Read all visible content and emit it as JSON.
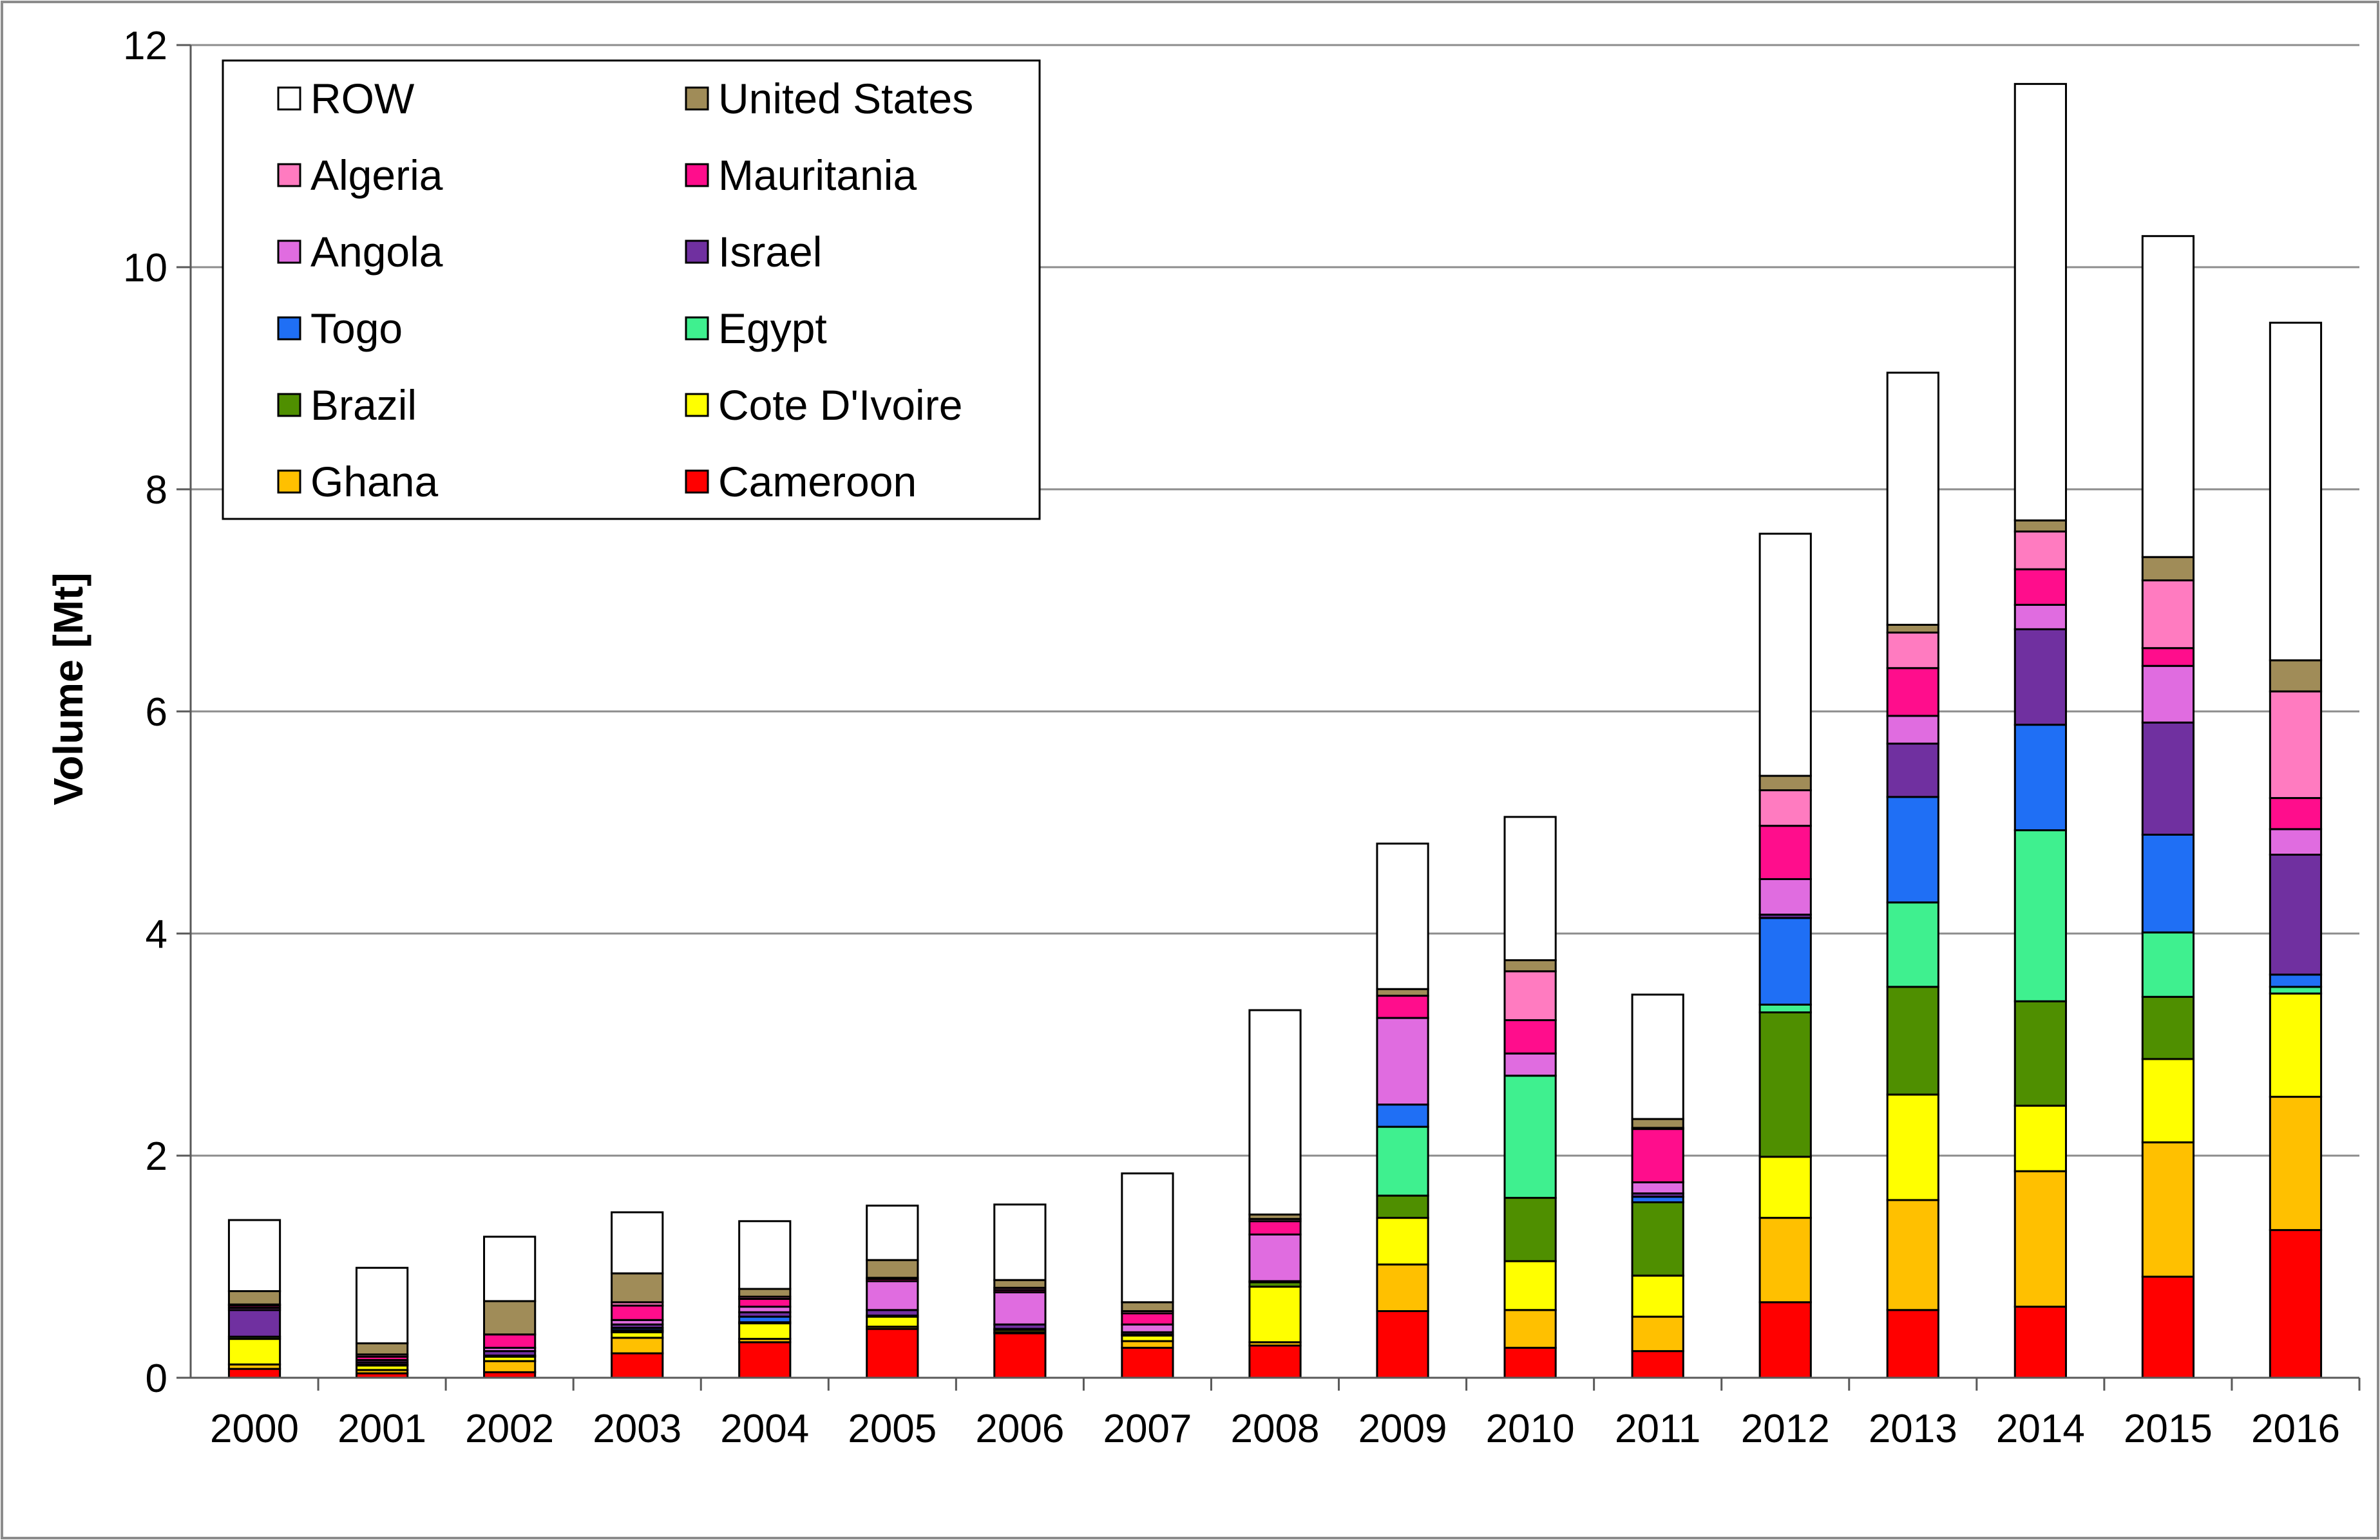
{
  "chart_data": {
    "type": "bar",
    "stacked": true,
    "title": "",
    "xlabel": "",
    "ylabel": "Volume [Mt]",
    "ylim": [
      0,
      12
    ],
    "yticks": [
      "0",
      "2",
      "4",
      "6",
      "8",
      "10",
      "12"
    ],
    "grid": "horizontal",
    "legend_position": "top-left",
    "categories": [
      "2000",
      "2001",
      "2002",
      "2003",
      "2004",
      "2005",
      "2006",
      "2007",
      "2008",
      "2009",
      "2010",
      "2011",
      "2012",
      "2013",
      "2014",
      "2015",
      "2016"
    ],
    "series": [
      {
        "name": "Cameroon",
        "color": "#ff0000",
        "values": [
          0.08,
          0.04,
          0.05,
          0.22,
          0.32,
          0.44,
          0.4,
          0.27,
          0.29,
          0.6,
          0.27,
          0.24,
          0.68,
          0.61,
          0.64,
          0.91,
          1.33
        ]
      },
      {
        "name": "Ghana",
        "color": "#ffc000",
        "values": [
          0.04,
          0.03,
          0.1,
          0.14,
          0.03,
          0.02,
          0.01,
          0.06,
          0.03,
          0.42,
          0.34,
          0.31,
          0.76,
          0.99,
          1.22,
          1.21,
          1.2
        ]
      },
      {
        "name": "Cote D'Ivoire",
        "color": "#ffff00",
        "values": [
          0.23,
          0.04,
          0.04,
          0.05,
          0.14,
          0.09,
          0.02,
          0.05,
          0.5,
          0.42,
          0.44,
          0.37,
          0.55,
          0.95,
          0.59,
          0.75,
          0.93
        ]
      },
      {
        "name": "Brazil",
        "color": "#4f8f00",
        "values": [
          0.02,
          0.01,
          0.01,
          0.01,
          0.01,
          0.01,
          0.01,
          0.01,
          0.04,
          0.2,
          0.57,
          0.66,
          1.3,
          0.97,
          0.94,
          0.56,
          0.0
        ]
      },
      {
        "name": "Egypt",
        "color": "#3ff08f",
        "values": [
          0.0,
          0.0,
          0.0,
          0.01,
          0.0,
          0.0,
          0.0,
          0.0,
          0.0,
          0.62,
          1.1,
          0.0,
          0.07,
          0.76,
          1.54,
          0.58,
          0.06
        ]
      },
      {
        "name": "Togo",
        "color": "#1f6ff5",
        "values": [
          0.0,
          0.0,
          0.0,
          0.02,
          0.05,
          0.0,
          0.0,
          0.0,
          0.0,
          0.2,
          0.0,
          0.05,
          0.78,
          0.95,
          0.95,
          0.88,
          0.11
        ]
      },
      {
        "name": "Israel",
        "color": "#7030a0",
        "values": [
          0.24,
          0.02,
          0.04,
          0.03,
          0.04,
          0.05,
          0.04,
          0.02,
          0.01,
          0.0,
          0.0,
          0.03,
          0.03,
          0.48,
          0.86,
          1.01,
          1.08
        ]
      },
      {
        "name": "Angola",
        "color": "#e06ce0",
        "values": [
          0.02,
          0.02,
          0.03,
          0.04,
          0.05,
          0.26,
          0.29,
          0.07,
          0.42,
          0.78,
          0.2,
          0.1,
          0.32,
          0.25,
          0.22,
          0.51,
          0.23
        ]
      },
      {
        "name": "Mauritania",
        "color": "#ff0d8c",
        "values": [
          0.02,
          0.03,
          0.12,
          0.13,
          0.07,
          0.02,
          0.02,
          0.1,
          0.12,
          0.2,
          0.3,
          0.48,
          0.48,
          0.43,
          0.32,
          0.16,
          0.28
        ]
      },
      {
        "name": "Algeria",
        "color": "#ff7bc0",
        "values": [
          0.01,
          0.02,
          0.0,
          0.03,
          0.02,
          0.01,
          0.02,
          0.02,
          0.02,
          0.0,
          0.44,
          0.01,
          0.32,
          0.32,
          0.34,
          0.61,
          0.96
        ]
      },
      {
        "name": "United States",
        "color": "#a08c58",
        "values": [
          0.12,
          0.1,
          0.3,
          0.26,
          0.07,
          0.16,
          0.07,
          0.08,
          0.04,
          0.06,
          0.1,
          0.08,
          0.13,
          0.07,
          0.1,
          0.21,
          0.28
        ]
      },
      {
        "name": "ROW",
        "color": "#ffffff",
        "values": [
          0.64,
          0.68,
          0.58,
          0.55,
          0.61,
          0.49,
          0.68,
          1.16,
          1.84,
          1.31,
          1.29,
          1.12,
          2.18,
          2.27,
          3.93,
          2.89,
          3.04
        ]
      }
    ],
    "legend_layout": [
      [
        "ROW",
        "United States"
      ],
      [
        "Algeria",
        "Mauritania"
      ],
      [
        "Angola",
        "Israel"
      ],
      [
        "Togo",
        "Egypt"
      ],
      [
        "Brazil",
        "Cote D'Ivoire"
      ],
      [
        "Ghana",
        "Cameroon"
      ]
    ]
  }
}
